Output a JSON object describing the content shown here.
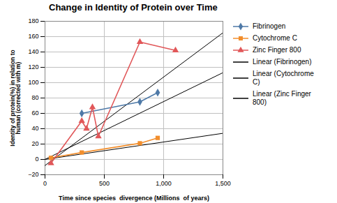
{
  "chart_data": {
    "type": "line",
    "title": "Change in Identity of Protein over Time",
    "xlabel": "Time since species  divergence (Millions  of years)",
    "ylabel": "Identity of protein(%) in relation to\nhuman (corrected with m)",
    "xlim": [
      0,
      1500
    ],
    "ylim": [
      -20,
      180
    ],
    "xticks": [
      0,
      500,
      1000,
      1500
    ],
    "yticks": [
      -20,
      0,
      20,
      40,
      60,
      80,
      100,
      120,
      140,
      160,
      180
    ],
    "grid": true,
    "legend": "right",
    "series": [
      {
        "name": "Fibrinogen",
        "marker": "diamond",
        "x": [
          310,
          800,
          950
        ],
        "values": [
          60,
          75,
          87
        ]
      },
      {
        "name": "Cytochrome C",
        "marker": "square",
        "x": [
          50,
          310,
          800,
          950
        ],
        "values": [
          2,
          9,
          21,
          28
        ]
      },
      {
        "name": "Zinc Finger 800",
        "marker": "triangle",
        "x": [
          50,
          310,
          350,
          400,
          450,
          800,
          1100
        ],
        "values": [
          -5,
          50,
          40,
          68,
          30,
          153,
          142
        ]
      },
      {
        "name": "Linear (Fibrinogen)",
        "color": "#000000",
        "x": [
          0,
          1500
        ],
        "values": [
          0,
          113
        ]
      },
      {
        "name": "Linear (Cytochrome\nC)",
        "color": "#000000",
        "x": [
          0,
          1500
        ],
        "values": [
          0,
          34
        ]
      },
      {
        "name": "Linear (Zinc Finger\n800)",
        "color": "#000000",
        "x": [
          0,
          1500
        ],
        "values": [
          -8,
          165
        ]
      }
    ]
  }
}
